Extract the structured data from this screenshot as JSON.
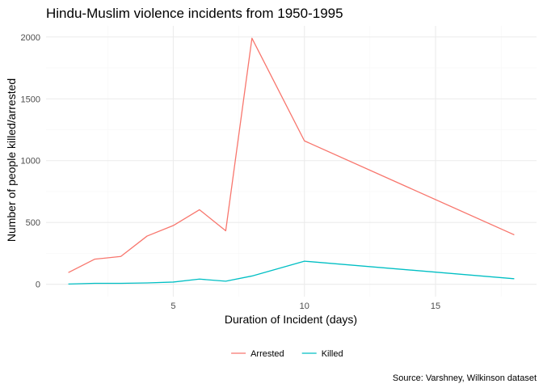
{
  "chart_data": {
    "type": "line",
    "title": "Hindu-Muslim violence incidents from 1950-1995",
    "xlabel": "Duration of Incident (days)",
    "ylabel": "Number of people killed/arrested",
    "caption": "Source: Varshney, Wilkinson dataset",
    "xlim": [
      0.15,
      18.85
    ],
    "ylim": [
      -100,
      2090
    ],
    "x_ticks": [
      5,
      10,
      15
    ],
    "y_ticks": [
      0,
      500,
      1000,
      1500,
      2000
    ],
    "grid": true,
    "legend_position": "bottom",
    "series": [
      {
        "name": "Arrested",
        "color": "#f8766d",
        "points": [
          [
            1,
            95
          ],
          [
            2,
            203
          ],
          [
            3,
            225
          ],
          [
            4,
            390
          ],
          [
            5,
            475
          ],
          [
            6,
            603
          ],
          [
            7,
            433
          ],
          [
            8,
            1990
          ],
          [
            10,
            1160
          ],
          [
            18,
            400
          ]
        ]
      },
      {
        "name": "Killed",
        "color": "#00bfc4",
        "points": [
          [
            1,
            2
          ],
          [
            2,
            8
          ],
          [
            3,
            8
          ],
          [
            4,
            11
          ],
          [
            5,
            18
          ],
          [
            6,
            42
          ],
          [
            7,
            25
          ],
          [
            8,
            67
          ],
          [
            10,
            187
          ],
          [
            18,
            45
          ]
        ]
      }
    ]
  }
}
